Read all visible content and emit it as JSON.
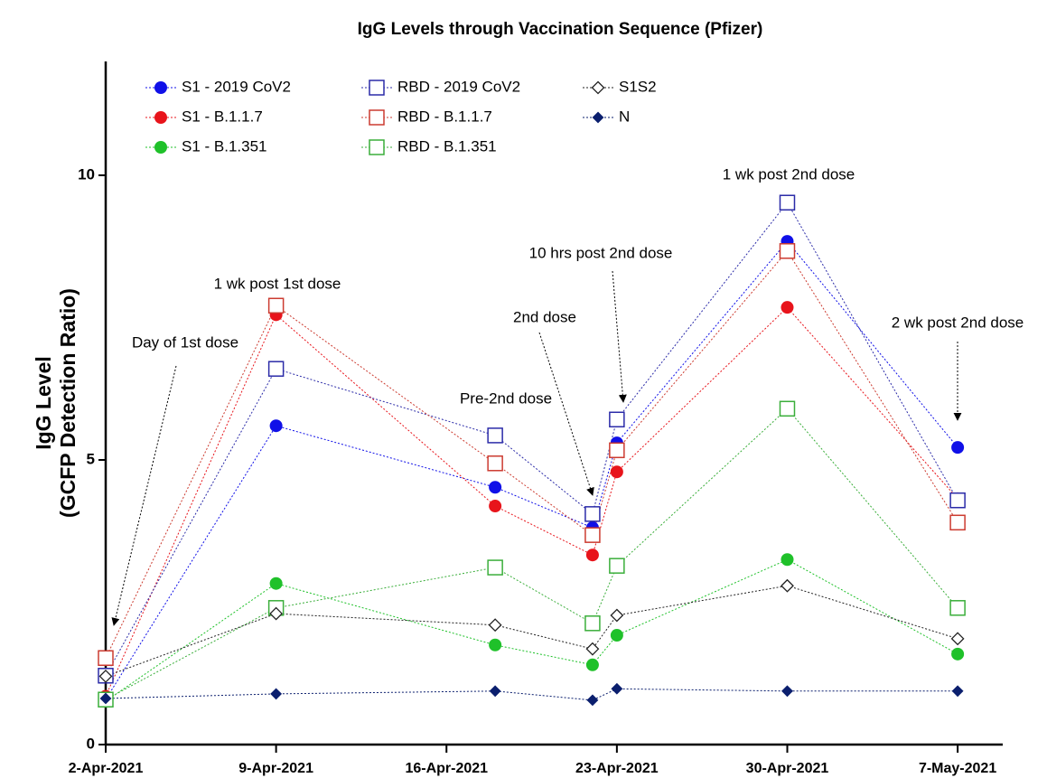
{
  "chart_data": {
    "type": "line",
    "title": "IgG Levels through Vaccination Sequence (Pfizer)",
    "y_label": [
      "IgG Level",
      "(GCFP Detection Ratio)"
    ],
    "x": [
      "2021-04-02",
      "2021-04-09",
      "2021-04-18",
      "2021-04-22",
      "2021-04-23",
      "2021-04-30",
      "2021-05-07"
    ],
    "xlim": [
      "2021-04-02",
      "2021-05-09"
    ],
    "xticks": [
      {
        "value": "2021-04-02",
        "label": "2-Apr-2021"
      },
      {
        "value": "2021-04-09",
        "label": "9-Apr-2021"
      },
      {
        "value": "2021-04-16",
        "label": "16-Apr-2021"
      },
      {
        "value": "2021-04-23",
        "label": "23-Apr-2021"
      },
      {
        "value": "2021-04-30",
        "label": "30-Apr-2021"
      },
      {
        "value": "2021-05-07",
        "label": "7-May-2021"
      }
    ],
    "ylim": [
      0,
      12
    ],
    "yticks": [
      0,
      5,
      10
    ],
    "series": [
      {
        "name": "S1 - 2019 CoV2",
        "color": "#1010e8",
        "marker": "circle",
        "values": [
          0.79,
          5.6,
          4.52,
          3.81,
          5.3,
          8.84,
          5.22
        ]
      },
      {
        "name": "S1 - B.1.1.7",
        "color": "#e8141b",
        "marker": "circle",
        "values": [
          0.85,
          7.55,
          4.19,
          3.33,
          4.79,
          7.68,
          4.32
        ]
      },
      {
        "name": "S1 - B.1.351",
        "color": "#1fc12a",
        "marker": "circle",
        "values": [
          0.76,
          2.83,
          1.75,
          1.4,
          1.92,
          3.25,
          1.59
        ]
      },
      {
        "name": "RBD - 2019 CoV2",
        "color": "#2b2ba8",
        "marker": "square",
        "values": [
          1.21,
          6.6,
          5.43,
          4.05,
          5.71,
          9.52,
          4.29
        ]
      },
      {
        "name": "RBD - B.1.1.7",
        "color": "#cc3b30",
        "marker": "square",
        "values": [
          1.52,
          7.71,
          4.94,
          3.68,
          5.17,
          8.67,
          3.9
        ]
      },
      {
        "name": "RBD - B.1.351",
        "color": "#3aae3a",
        "marker": "square",
        "values": [
          0.79,
          2.4,
          3.11,
          2.13,
          3.14,
          5.9,
          2.4
        ]
      },
      {
        "name": "S1S2",
        "color": "#222222",
        "marker": "diamond-open",
        "values": [
          1.2,
          2.3,
          2.1,
          1.68,
          2.27,
          2.79,
          1.86
        ]
      },
      {
        "name": "N",
        "color": "#0b1f6e",
        "marker": "diamond",
        "values": [
          0.81,
          0.89,
          0.94,
          0.78,
          0.98,
          0.94,
          0.94
        ]
      }
    ],
    "annotations": [
      "Day of 1st dose",
      "1 wk post 1st dose",
      "Pre-2nd dose",
      "2nd dose",
      "10 hrs post 2nd dose",
      "1 wk post 2nd dose",
      "2 wk post 2nd dose"
    ]
  }
}
